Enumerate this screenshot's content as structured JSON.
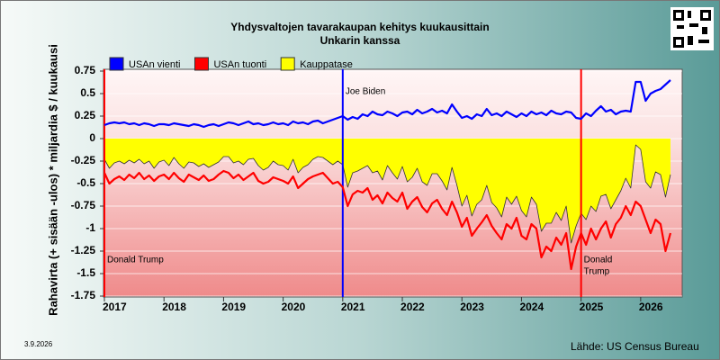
{
  "chart_data": {
    "type": "line",
    "title": "Yhdysvaltojen tavarakaupan kehitys kuukausittain",
    "subtitle": "Unkarin kanssa",
    "y_label": "Rahavirta (+ sisään -ulos)  * miljardia $ / kuukausi",
    "source": "Lähde: US Census Bureau",
    "date": "3.9.2026",
    "legend": "top",
    "grid": true,
    "ylim": [
      -1.75,
      0.75
    ],
    "yticks": [
      0.75,
      0.5,
      0.25,
      0,
      -0.25,
      -0.5,
      -0.75,
      -1,
      -1.25,
      -1.5,
      -1.75
    ],
    "xlim": [
      "2017-01",
      "2026-09"
    ],
    "xticks": [
      {
        "value": "2017-01",
        "label": "2017"
      },
      {
        "value": "2018-01",
        "label": "2018"
      },
      {
        "value": "2019-01",
        "label": "2019"
      },
      {
        "value": "2020-01",
        "label": "2020"
      },
      {
        "value": "2021-01",
        "label": "2021"
      },
      {
        "value": "2022-01",
        "label": "2022"
      },
      {
        "value": "2023-01",
        "label": "2023"
      },
      {
        "value": "2024-01",
        "label": "2024"
      },
      {
        "value": "2025-01",
        "label": "2025"
      },
      {
        "value": "2026-01",
        "label": "2026"
      }
    ],
    "annotations": [
      {
        "x": "2017-01",
        "color": "#ff0000",
        "lines": [
          "Donald Trump"
        ]
      },
      {
        "x": "2021-01",
        "color": "#0000ff",
        "lines": [
          "Joe Biden"
        ]
      },
      {
        "x": "2025-01",
        "color": "#ff0000",
        "lines": [
          "Donald",
          "Trump"
        ]
      }
    ],
    "x": [
      "2017-01",
      "2017-02",
      "2017-03",
      "2017-04",
      "2017-05",
      "2017-06",
      "2017-07",
      "2017-08",
      "2017-09",
      "2017-10",
      "2017-11",
      "2017-12",
      "2018-01",
      "2018-02",
      "2018-03",
      "2018-04",
      "2018-05",
      "2018-06",
      "2018-07",
      "2018-08",
      "2018-09",
      "2018-10",
      "2018-11",
      "2018-12",
      "2019-01",
      "2019-02",
      "2019-03",
      "2019-04",
      "2019-05",
      "2019-06",
      "2019-07",
      "2019-08",
      "2019-09",
      "2019-10",
      "2019-11",
      "2019-12",
      "2020-01",
      "2020-02",
      "2020-03",
      "2020-04",
      "2020-05",
      "2020-06",
      "2020-07",
      "2020-08",
      "2020-09",
      "2020-10",
      "2020-11",
      "2020-12",
      "2021-01",
      "2021-02",
      "2021-03",
      "2021-04",
      "2021-05",
      "2021-06",
      "2021-07",
      "2021-08",
      "2021-09",
      "2021-10",
      "2021-11",
      "2021-12",
      "2022-01",
      "2022-02",
      "2022-03",
      "2022-04",
      "2022-05",
      "2022-06",
      "2022-07",
      "2022-08",
      "2022-09",
      "2022-10",
      "2022-11",
      "2022-12",
      "2023-01",
      "2023-02",
      "2023-03",
      "2023-04",
      "2023-05",
      "2023-06",
      "2023-07",
      "2023-08",
      "2023-09",
      "2023-10",
      "2023-11",
      "2023-12",
      "2024-01",
      "2024-02",
      "2024-03",
      "2024-04",
      "2024-05",
      "2024-06",
      "2024-07",
      "2024-08",
      "2024-09",
      "2024-10",
      "2024-11",
      "2024-12",
      "2025-01",
      "2025-02",
      "2025-03",
      "2025-04",
      "2025-05",
      "2025-06",
      "2025-07",
      "2025-08",
      "2025-09",
      "2025-10",
      "2025-11",
      "2025-12",
      "2026-01",
      "2026-02",
      "2026-03",
      "2026-04",
      "2026-05",
      "2026-06",
      "2026-07"
    ],
    "series": [
      {
        "name": "USAn vienti",
        "color": "#0000ff",
        "style": "line",
        "values": [
          0.15,
          0.17,
          0.18,
          0.17,
          0.18,
          0.16,
          0.17,
          0.15,
          0.17,
          0.16,
          0.14,
          0.16,
          0.16,
          0.15,
          0.17,
          0.16,
          0.15,
          0.14,
          0.16,
          0.15,
          0.13,
          0.15,
          0.16,
          0.14,
          0.16,
          0.18,
          0.17,
          0.15,
          0.17,
          0.19,
          0.16,
          0.17,
          0.15,
          0.16,
          0.18,
          0.16,
          0.17,
          0.15,
          0.19,
          0.17,
          0.18,
          0.16,
          0.19,
          0.2,
          0.17,
          0.19,
          0.21,
          0.23,
          0.25,
          0.21,
          0.24,
          0.22,
          0.27,
          0.25,
          0.3,
          0.27,
          0.26,
          0.3,
          0.28,
          0.25,
          0.29,
          0.3,
          0.27,
          0.32,
          0.28,
          0.3,
          0.33,
          0.29,
          0.31,
          0.28,
          0.38,
          0.3,
          0.23,
          0.25,
          0.22,
          0.27,
          0.25,
          0.33,
          0.26,
          0.28,
          0.25,
          0.3,
          0.27,
          0.24,
          0.28,
          0.25,
          0.3,
          0.27,
          0.29,
          0.26,
          0.31,
          0.28,
          0.27,
          0.3,
          0.29,
          0.23,
          0.22,
          0.28,
          0.25,
          0.31,
          0.36,
          0.3,
          0.32,
          0.27,
          0.3,
          0.31,
          0.3,
          0.63,
          0.63,
          0.42,
          0.5,
          0.53,
          0.55,
          0.6,
          0.65
        ]
      },
      {
        "name": "USAn tuonti",
        "color": "#ff0000",
        "style": "line",
        "values": [
          -0.38,
          -0.5,
          -0.45,
          -0.42,
          -0.46,
          -0.4,
          -0.44,
          -0.38,
          -0.45,
          -0.41,
          -0.47,
          -0.42,
          -0.4,
          -0.45,
          -0.38,
          -0.44,
          -0.48,
          -0.4,
          -0.43,
          -0.46,
          -0.41,
          -0.47,
          -0.45,
          -0.4,
          -0.36,
          -0.38,
          -0.44,
          -0.4,
          -0.46,
          -0.42,
          -0.38,
          -0.47,
          -0.5,
          -0.48,
          -0.43,
          -0.45,
          -0.47,
          -0.5,
          -0.42,
          -0.55,
          -0.5,
          -0.45,
          -0.42,
          -0.4,
          -0.38,
          -0.44,
          -0.5,
          -0.48,
          -0.54,
          -0.75,
          -0.62,
          -0.58,
          -0.6,
          -0.55,
          -0.68,
          -0.63,
          -0.72,
          -0.6,
          -0.66,
          -0.7,
          -0.6,
          -0.78,
          -0.7,
          -0.65,
          -0.76,
          -0.82,
          -0.72,
          -0.68,
          -0.78,
          -0.85,
          -0.7,
          -0.82,
          -0.98,
          -0.88,
          -1.08,
          -1.0,
          -0.93,
          -0.85,
          -0.97,
          -1.05,
          -1.12,
          -0.95,
          -1.0,
          -0.88,
          -1.08,
          -1.12,
          -0.95,
          -1.0,
          -1.32,
          -1.2,
          -1.25,
          -1.1,
          -1.18,
          -1.05,
          -1.45,
          -1.2,
          -1.05,
          -1.18,
          -1.0,
          -1.12,
          -1.0,
          -0.92,
          -1.1,
          -0.95,
          -0.88,
          -0.75,
          -0.85,
          -0.7,
          -0.75,
          -0.9,
          -1.05,
          -0.9,
          -0.95,
          -1.25,
          -1.05
        ]
      },
      {
        "name": "Kauppatase",
        "color": "#ffff00",
        "style": "area",
        "values": [
          -0.23,
          -0.33,
          -0.27,
          -0.25,
          -0.28,
          -0.24,
          -0.27,
          -0.23,
          -0.28,
          -0.25,
          -0.33,
          -0.26,
          -0.24,
          -0.3,
          -0.21,
          -0.28,
          -0.33,
          -0.26,
          -0.27,
          -0.31,
          -0.28,
          -0.32,
          -0.29,
          -0.26,
          -0.2,
          -0.2,
          -0.27,
          -0.25,
          -0.29,
          -0.23,
          -0.22,
          -0.3,
          -0.35,
          -0.32,
          -0.25,
          -0.29,
          -0.3,
          -0.35,
          -0.23,
          -0.38,
          -0.32,
          -0.29,
          -0.23,
          -0.2,
          -0.21,
          -0.25,
          -0.29,
          -0.25,
          -0.29,
          -0.54,
          -0.38,
          -0.36,
          -0.33,
          -0.3,
          -0.38,
          -0.36,
          -0.46,
          -0.3,
          -0.38,
          -0.45,
          -0.31,
          -0.48,
          -0.43,
          -0.33,
          -0.48,
          -0.52,
          -0.39,
          -0.39,
          -0.47,
          -0.57,
          -0.32,
          -0.52,
          -0.75,
          -0.63,
          -0.86,
          -0.73,
          -0.68,
          -0.52,
          -0.71,
          -0.77,
          -0.87,
          -0.65,
          -0.73,
          -0.64,
          -0.8,
          -0.87,
          -0.65,
          -0.73,
          -1.03,
          -0.94,
          -0.94,
          -0.82,
          -0.91,
          -0.75,
          -1.16,
          -0.97,
          -0.83,
          -0.9,
          -0.75,
          -0.81,
          -0.64,
          -0.62,
          -0.78,
          -0.68,
          -0.58,
          -0.44,
          -0.55,
          -0.07,
          -0.12,
          -0.48,
          -0.55,
          -0.37,
          -0.4,
          -0.65,
          -0.4
        ]
      }
    ]
  }
}
